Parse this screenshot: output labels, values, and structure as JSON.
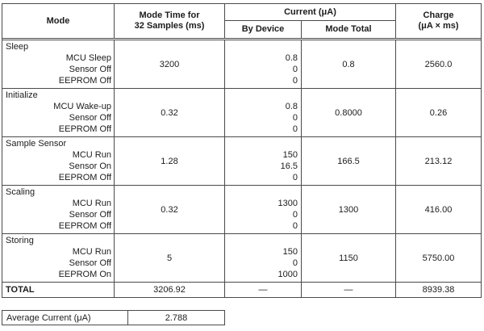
{
  "colors": {
    "border": "#4a4a4a",
    "text": "#1c1c1c",
    "background": "#ffffff"
  },
  "table": {
    "headers": {
      "mode": "Mode",
      "mode_time_line1": "Mode Time for",
      "mode_time_line2": "32 Samples (ms)",
      "current": "Current (μA)",
      "by_device": "By Device",
      "mode_total": "Mode Total",
      "charge_line1": "Charge",
      "charge_line2": "(μA × ms)"
    },
    "rows": [
      {
        "mode": "Sleep",
        "devices": [
          "MCU Sleep",
          "Sensor Off",
          "EEPROM Off"
        ],
        "mode_time": "3200",
        "by_device": [
          "0.8",
          "0",
          "0"
        ],
        "mode_total": "0.8",
        "charge": "2560.0"
      },
      {
        "mode": "Initialize",
        "devices": [
          "MCU Wake-up",
          "Sensor Off",
          "EEPROM Off"
        ],
        "mode_time": "0.32",
        "by_device": [
          "0.8",
          "0",
          "0"
        ],
        "mode_total": "0.8000",
        "charge": "0.26"
      },
      {
        "mode": "Sample Sensor",
        "devices": [
          "MCU Run",
          "Sensor On",
          "EEPROM Off"
        ],
        "mode_time": "1.28",
        "by_device": [
          "150",
          "16.5",
          "0"
        ],
        "mode_total": "166.5",
        "charge": "213.12"
      },
      {
        "mode": "Scaling",
        "devices": [
          "MCU Run",
          "Sensor Off",
          "EEPROM Off"
        ],
        "mode_time": "0.32",
        "by_device": [
          "1300",
          "0",
          "0"
        ],
        "mode_total": "1300",
        "charge": "416.00"
      },
      {
        "mode": "Storing",
        "devices": [
          "MCU Run",
          "Sensor Off",
          "EEPROM On"
        ],
        "mode_time": "5",
        "by_device": [
          "150",
          "0",
          "1000"
        ],
        "mode_total": "1150",
        "charge": "5750.00"
      }
    ],
    "total_row": {
      "label": "TOTAL",
      "mode_time": "3206.92",
      "by_device": "—",
      "mode_total": "—",
      "charge": "8939.38"
    }
  },
  "summary": {
    "label": "Average Current (μA)",
    "value": "2.788"
  }
}
